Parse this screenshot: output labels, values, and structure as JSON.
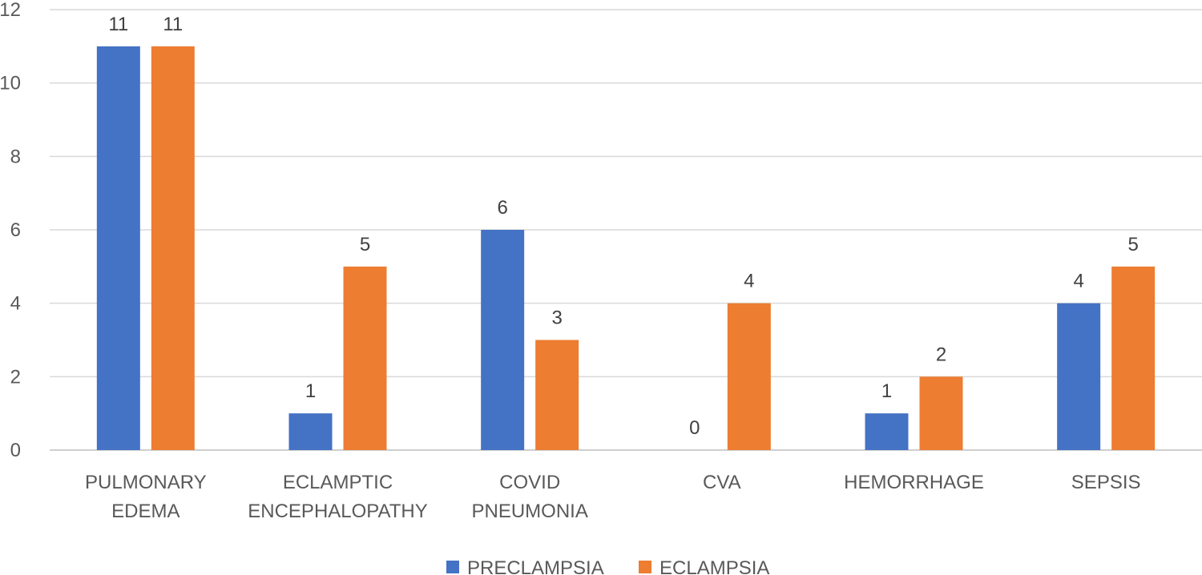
{
  "chart_data": {
    "type": "bar",
    "title": "",
    "xlabel": "",
    "ylabel": "",
    "ylim": [
      0,
      12
    ],
    "yticks": [
      "0",
      "2",
      "4",
      "6",
      "8",
      "10",
      "12"
    ],
    "grid": true,
    "legend_position": "bottom",
    "categories": [
      [
        "PULMONARY",
        "EDEMA"
      ],
      [
        "ECLAMPTIC",
        "ENCEPHALOPATHY"
      ],
      [
        "COVID",
        "PNEUMONIA"
      ],
      [
        "CVA"
      ],
      [
        "HEMORRHAGE"
      ],
      [
        "SEPSIS"
      ]
    ],
    "series": [
      {
        "name": "PRECLAMPSIA",
        "color": "#4472C4",
        "values": [
          11,
          1,
          6,
          0,
          1,
          4
        ]
      },
      {
        "name": "ECLAMPSIA",
        "color": "#ED7D31",
        "values": [
          11,
          5,
          3,
          4,
          2,
          5
        ]
      }
    ]
  }
}
